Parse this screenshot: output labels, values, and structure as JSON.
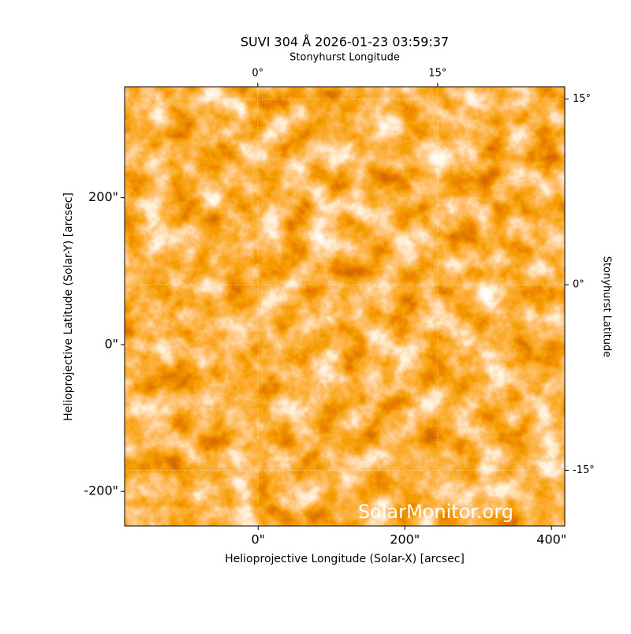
{
  "chart_data": {
    "type": "image",
    "title": "SUVI 304 Å 2026-01-23 03:59:37",
    "xlabel": "Helioprojective Longitude (Solar-X) [arcsec]",
    "ylabel": "Helioprojective Latitude (Solar-Y) [arcsec]",
    "x2label": "Stonyhurst Longitude",
    "y2label": "Stonyhurst Latitude",
    "xlim": [
      -182,
      418
    ],
    "ylim": [
      -247,
      351
    ],
    "xticks": [
      {
        "value": 0,
        "label": "0\""
      },
      {
        "value": 200,
        "label": "200\""
      },
      {
        "value": 400,
        "label": "400\""
      }
    ],
    "yticks": [
      {
        "value": -200,
        "label": "-200\""
      },
      {
        "value": 0,
        "label": "0\""
      },
      {
        "value": 200,
        "label": "200\""
      }
    ],
    "x2lim": [
      -11.1,
      25.6
    ],
    "x2ticks": [
      {
        "value": 0,
        "label": "0°"
      },
      {
        "value": 15,
        "label": "15°"
      }
    ],
    "y2lim": [
      -19.5,
      16
    ],
    "y2ticks": [
      {
        "value": -15,
        "label": "-15°"
      },
      {
        "value": 0,
        "label": "0°"
      },
      {
        "value": 15,
        "label": "15°"
      }
    ],
    "grid": true,
    "watermark": "SolarMonitor.org"
  }
}
